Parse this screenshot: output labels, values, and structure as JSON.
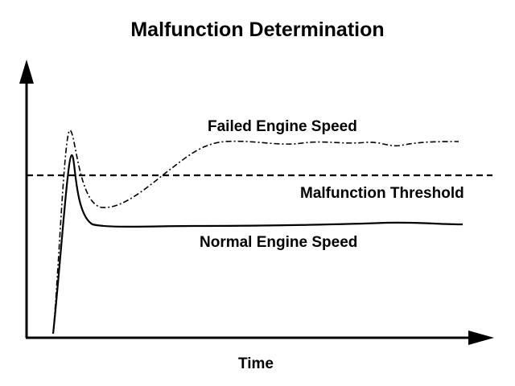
{
  "title": "Malfunction Determination",
  "x_axis_label": "Time",
  "labels": {
    "failed": "Failed Engine Speed",
    "threshold": "Malfunction Threshold",
    "normal": "Normal Engine Speed"
  },
  "colors": {
    "ink": "#000000",
    "background": "#ffffff"
  },
  "line_styles": {
    "failed": "dash-dot",
    "threshold": "dashed",
    "normal": "solid"
  }
}
